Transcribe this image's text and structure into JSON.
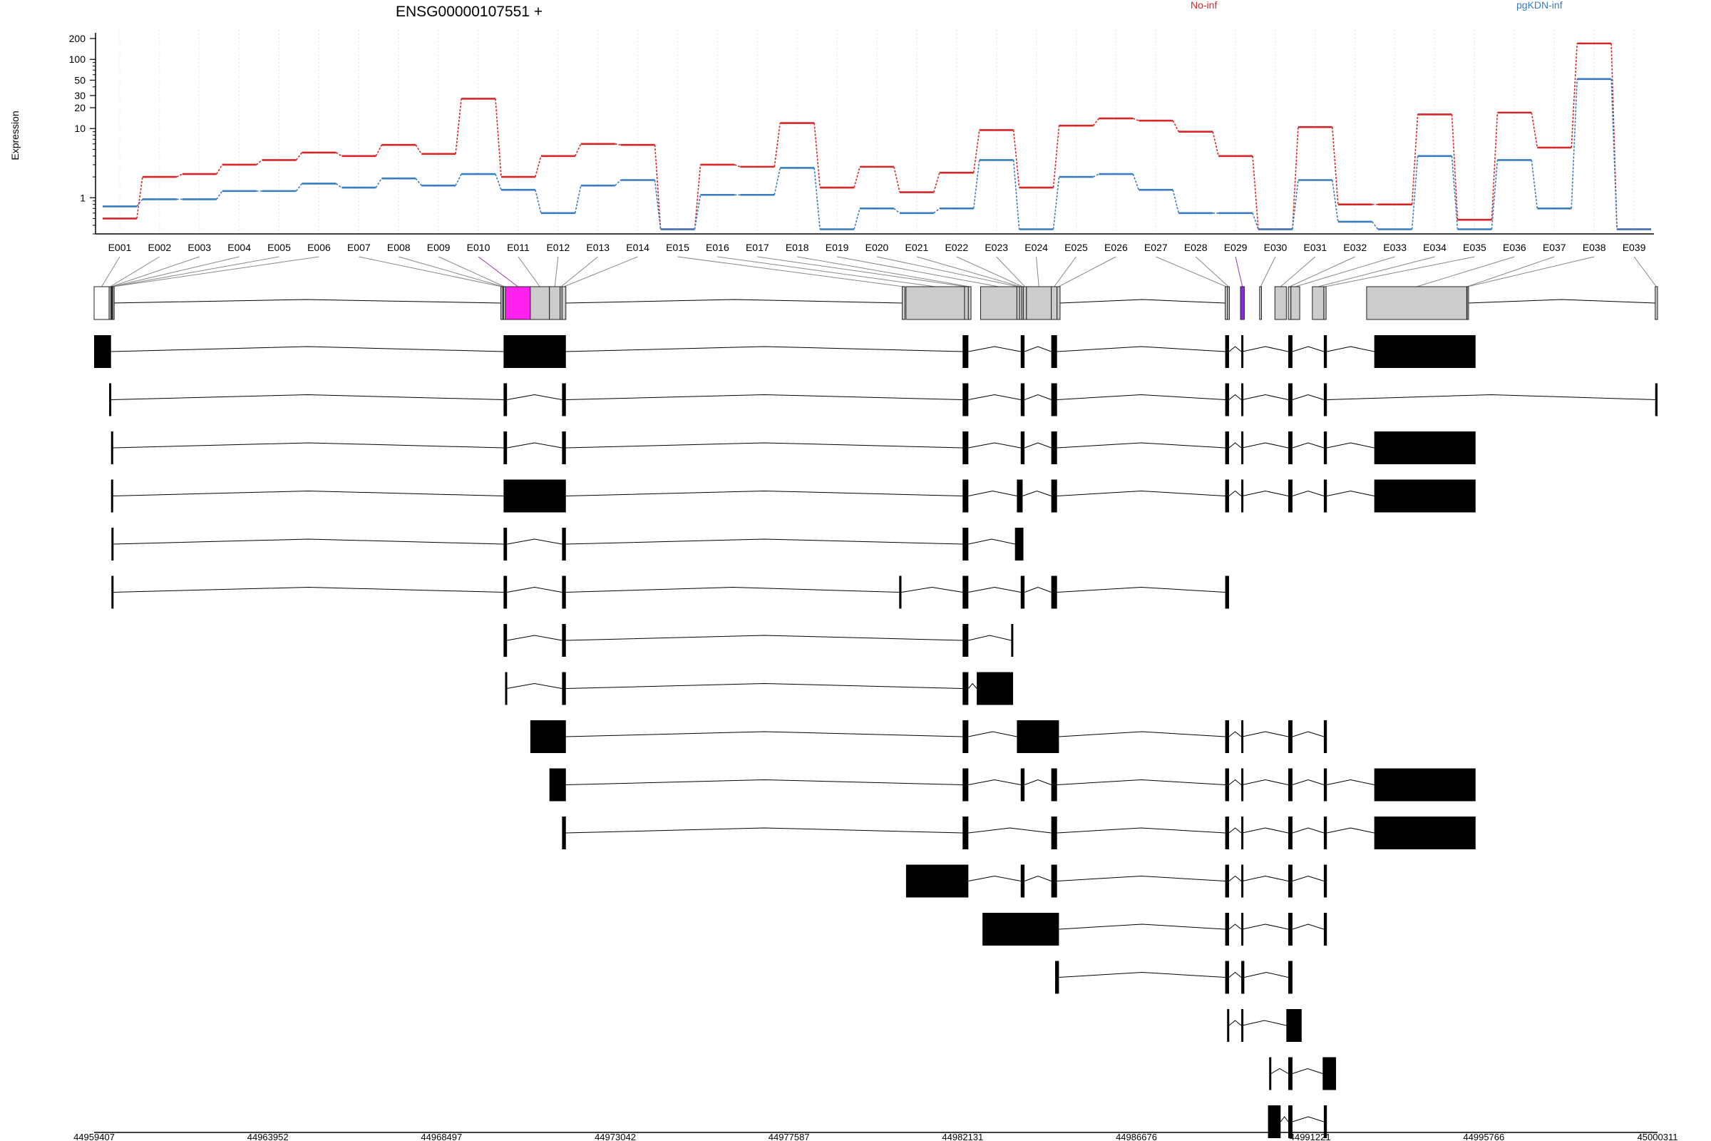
{
  "title": "ENSG00000107551 +",
  "ylabel": "Expression",
  "colors": {
    "no_inf": "#d62728",
    "pgkdn_inf": "#3a7bbf",
    "highlight": "#ff22ee",
    "exon_gray": "#cccccc"
  },
  "chart_data": {
    "type": "line",
    "title": "ENSG00000107551 +",
    "ylabel": "Expression",
    "yscale": "log",
    "ylim": [
      0.3,
      220
    ],
    "yticks": [
      1,
      10,
      20,
      30,
      50,
      100,
      200
    ],
    "grid": true,
    "legend_position": "top",
    "categories": [
      "E001",
      "E002",
      "E003",
      "E004",
      "E005",
      "E006",
      "E007",
      "E008",
      "E009",
      "E010",
      "E011",
      "E012",
      "E013",
      "E014",
      "E015",
      "E016",
      "E017",
      "E018",
      "E019",
      "E020",
      "E021",
      "E022",
      "E023",
      "E024",
      "E025",
      "E026",
      "E027",
      "E028",
      "E029",
      "E030",
      "E031",
      "E032",
      "E033",
      "E034",
      "E035",
      "E036",
      "E037",
      "E038",
      "E039"
    ],
    "series": [
      {
        "name": "No-inf",
        "color": "#d62728",
        "values": [
          0.5,
          2,
          2.2,
          3,
          3.5,
          4.5,
          4,
          5.8,
          4.3,
          27,
          2,
          4,
          6,
          5.8,
          0.35,
          3,
          2.8,
          12,
          1.4,
          2.8,
          1.2,
          2.3,
          9.5,
          1.4,
          11,
          14,
          13,
          9,
          4,
          0.35,
          10.5,
          0.8,
          0.8,
          16,
          0.48,
          17,
          5.3,
          170,
          0.35
        ]
      },
      {
        "name": "pgKDN-inf",
        "color": "#3a7bbf",
        "values": [
          0.75,
          0.95,
          0.95,
          1.25,
          1.25,
          1.6,
          1.4,
          1.9,
          1.5,
          2.2,
          1.3,
          0.6,
          1.5,
          1.8,
          0.35,
          1.1,
          1.1,
          2.7,
          0.35,
          0.7,
          0.6,
          0.7,
          3.5,
          0.35,
          2,
          2.2,
          1.3,
          0.6,
          0.6,
          0.35,
          1.8,
          0.45,
          0.35,
          4,
          0.35,
          3.5,
          0.7,
          52,
          0.35
        ]
      }
    ]
  },
  "gene_model": {
    "genomic_start": 44959407,
    "genomic_end": 45000311,
    "axis_ticks": [
      "44959407",
      "44963952",
      "44968497",
      "44973042",
      "44977587",
      "44982131",
      "44986676",
      "44991221",
      "44995766",
      "45000311"
    ],
    "exon_bins": [
      {
        "id": "E001",
        "start": 44959407,
        "end": 44959800
      },
      {
        "id": "E002",
        "start": 44959800,
        "end": 44959850
      },
      {
        "id": "E003",
        "start": 44959850,
        "end": 44959865
      },
      {
        "id": "E004",
        "start": 44959865,
        "end": 44959885
      },
      {
        "id": "E005",
        "start": 44959885,
        "end": 44959895
      },
      {
        "id": "E006",
        "start": 44959895,
        "end": 44959905
      },
      {
        "id": "E007",
        "start": 44970050,
        "end": 44970100
      },
      {
        "id": "E008",
        "start": 44970100,
        "end": 44970120
      },
      {
        "id": "E009",
        "start": 44970120,
        "end": 44970170
      },
      {
        "id": "E010",
        "start": 44970170,
        "end": 44970820
      },
      {
        "id": "E011",
        "start": 44970820,
        "end": 44971320
      },
      {
        "id": "E012",
        "start": 44971320,
        "end": 44971600
      },
      {
        "id": "E013",
        "start": 44971600,
        "end": 44971650
      },
      {
        "id": "E014",
        "start": 44971650,
        "end": 44971750
      },
      {
        "id": "E015",
        "start": 44980550,
        "end": 44980620
      },
      {
        "id": "E016",
        "start": 44980650,
        "end": 44982180
      },
      {
        "id": "E017",
        "start": 44982180,
        "end": 44982280
      },
      {
        "id": "E018",
        "start": 44982280,
        "end": 44982350
      },
      {
        "id": "E019",
        "start": 44982600,
        "end": 44983550
      },
      {
        "id": "E020",
        "start": 44983550,
        "end": 44983620
      },
      {
        "id": "E021",
        "start": 44983620,
        "end": 44983680
      },
      {
        "id": "E022",
        "start": 44983680,
        "end": 44983720
      },
      {
        "id": "E023",
        "start": 44983720,
        "end": 44983800
      },
      {
        "id": "E024",
        "start": 44983800,
        "end": 44984450
      },
      {
        "id": "E025",
        "start": 44984450,
        "end": 44984600
      },
      {
        "id": "E026",
        "start": 44984600,
        "end": 44984680
      },
      {
        "id": "E027",
        "start": 44989000,
        "end": 44989060
      },
      {
        "id": "E028",
        "start": 44989060,
        "end": 44989110
      },
      {
        "id": "E029",
        "start": 44989400,
        "end": 44989500
      },
      {
        "id": "E030",
        "start": 44989900,
        "end": 44989950
      },
      {
        "id": "E031",
        "start": 44990300,
        "end": 44990600
      },
      {
        "id": "E032",
        "start": 44990650,
        "end": 44990720
      },
      {
        "id": "E033",
        "start": 44990720,
        "end": 44990950
      },
      {
        "id": "E034",
        "start": 44991280,
        "end": 44991580
      },
      {
        "id": "E035",
        "start": 44991580,
        "end": 44991640
      },
      {
        "id": "E036",
        "start": 44992700,
        "end": 44995320
      },
      {
        "id": "E037",
        "start": 44995320,
        "end": 44995330
      },
      {
        "id": "E038",
        "start": 44995330,
        "end": 44995350
      },
      {
        "id": "E039",
        "start": 45000250,
        "end": 45000311
      }
    ],
    "transcripts": [
      [
        [
          44959407,
          44959850
        ],
        [
          44970120,
          44971750
        ],
        [
          44982130,
          44982280
        ],
        [
          44983650,
          44983750
        ],
        [
          44984450,
          44984600
        ],
        [
          44989000,
          44989100
        ],
        [
          44989420,
          44989450
        ],
        [
          44990650,
          44990760
        ],
        [
          44991580,
          44991660
        ],
        [
          44992900,
          44995550
        ]
      ],
      [
        [
          44959800,
          44959850
        ],
        [
          44970120,
          44970210
        ],
        [
          44971650,
          44971750
        ],
        [
          44982130,
          44982280
        ],
        [
          44983650,
          44983750
        ],
        [
          44984450,
          44984600
        ],
        [
          44989000,
          44989100
        ],
        [
          44989420,
          44989450
        ],
        [
          44990650,
          44990760
        ],
        [
          44991580,
          44991660
        ],
        [
          45000250,
          45000311
        ]
      ],
      [
        [
          44959850,
          44959900
        ],
        [
          44970120,
          44970210
        ],
        [
          44971650,
          44971750
        ],
        [
          44982130,
          44982280
        ],
        [
          44983650,
          44983750
        ],
        [
          44984450,
          44984600
        ],
        [
          44989000,
          44989100
        ],
        [
          44989420,
          44989450
        ],
        [
          44990650,
          44990760
        ],
        [
          44991580,
          44991660
        ],
        [
          44992900,
          44995550
        ]
      ],
      [
        [
          44959850,
          44959900
        ],
        [
          44970120,
          44971750
        ],
        [
          44982130,
          44982280
        ],
        [
          44983550,
          44983700
        ],
        [
          44984450,
          44984600
        ],
        [
          44989000,
          44989100
        ],
        [
          44989420,
          44989450
        ],
        [
          44990650,
          44990760
        ],
        [
          44991580,
          44991660
        ],
        [
          44992900,
          44995550
        ]
      ],
      [
        [
          44959860,
          44959900
        ],
        [
          44970120,
          44970210
        ],
        [
          44971650,
          44971750
        ],
        [
          44982130,
          44982280
        ],
        [
          44983500,
          44983720
        ]
      ],
      [
        [
          44959860,
          44959900
        ],
        [
          44970120,
          44970210
        ],
        [
          44971650,
          44971750
        ],
        [
          44980470,
          44980530
        ],
        [
          44982130,
          44982280
        ],
        [
          44983650,
          44983750
        ],
        [
          44984450,
          44984600
        ],
        [
          44989000,
          44989100
        ]
      ],
      [
        [
          44970120,
          44970210
        ],
        [
          44971650,
          44971750
        ],
        [
          44982130,
          44982280
        ],
        [
          44983400,
          44983450
        ]
      ],
      [
        [
          44970160,
          44970200
        ],
        [
          44971650,
          44971750
        ],
        [
          44982130,
          44982280
        ],
        [
          44982500,
          44983450
        ]
      ],
      [
        [
          44970820,
          44971750
        ],
        [
          44982130,
          44982280
        ],
        [
          44983550,
          44984650
        ],
        [
          44989000,
          44989100
        ],
        [
          44989420,
          44989450
        ],
        [
          44990650,
          44990760
        ],
        [
          44991580,
          44991660
        ]
      ],
      [
        [
          44971320,
          44971750
        ],
        [
          44982130,
          44982280
        ],
        [
          44983650,
          44983750
        ],
        [
          44984450,
          44984600
        ],
        [
          44989000,
          44989100
        ],
        [
          44989420,
          44989450
        ],
        [
          44990650,
          44990760
        ],
        [
          44991580,
          44991660
        ],
        [
          44992900,
          44995550
        ]
      ],
      [
        [
          44971650,
          44971750
        ],
        [
          44982130,
          44982280
        ],
        [
          44984450,
          44984600
        ],
        [
          44989000,
          44989100
        ],
        [
          44989420,
          44989450
        ],
        [
          44990650,
          44990760
        ],
        [
          44991580,
          44991660
        ],
        [
          44992900,
          44995550
        ]
      ],
      [
        [
          44980650,
          44982280
        ],
        [
          44983650,
          44983750
        ],
        [
          44984450,
          44984600
        ],
        [
          44989000,
          44989100
        ],
        [
          44989420,
          44989450
        ],
        [
          44990650,
          44990760
        ],
        [
          44991580,
          44991660
        ]
      ],
      [
        [
          44982650,
          44984650
        ],
        [
          44989000,
          44989100
        ],
        [
          44989420,
          44989450
        ],
        [
          44990650,
          44990760
        ],
        [
          44991580,
          44991660
        ]
      ],
      [
        [
          44984550,
          44984650
        ],
        [
          44989000,
          44989100
        ],
        [
          44989420,
          44989500
        ],
        [
          44990650,
          44990760
        ]
      ],
      [
        [
          44989050,
          44989100
        ],
        [
          44989420,
          44989450
        ],
        [
          44990600,
          44991000
        ]
      ],
      [
        [
          44990150,
          44990200
        ],
        [
          44990650,
          44990760
        ],
        [
          44991550,
          44991900
        ]
      ],
      [
        [
          44990120,
          44990450
        ],
        [
          44990650,
          44990760
        ],
        [
          44991580,
          44991660
        ]
      ]
    ]
  }
}
